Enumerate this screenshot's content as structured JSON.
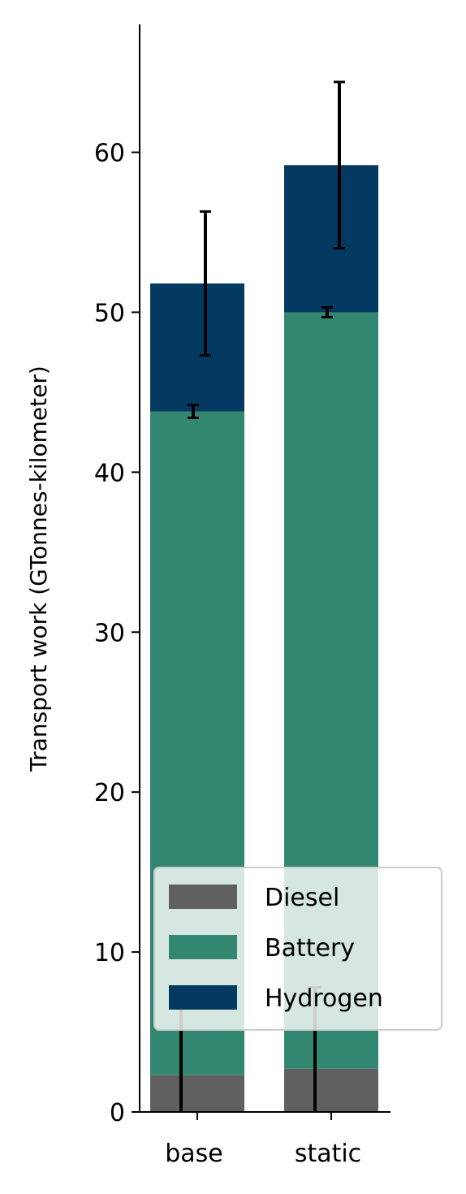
{
  "chart_data": {
    "type": "bar",
    "stacked": true,
    "categories": [
      "base",
      "static"
    ],
    "series": [
      {
        "name": "Diesel",
        "color": "#606060",
        "values": [
          2.3,
          2.7
        ]
      },
      {
        "name": "Battery",
        "color": "#33866f",
        "values": [
          41.5,
          47.3
        ]
      },
      {
        "name": "Hydrogen",
        "color": "#043a61",
        "values": [
          8.0,
          9.2
        ]
      }
    ],
    "error_bars": [
      {
        "category": "base",
        "series": "Diesel",
        "center": 2.3,
        "low": 0.0,
        "high": 6.8
      },
      {
        "category": "base",
        "series": "Battery",
        "center": 43.8,
        "low": 43.4,
        "high": 44.2
      },
      {
        "category": "base",
        "series": "Hydrogen",
        "center": 51.8,
        "low": 47.3,
        "high": 56.3
      },
      {
        "category": "static",
        "series": "Diesel",
        "center": 2.7,
        "low": 0.0,
        "high": 7.8
      },
      {
        "category": "static",
        "series": "Battery",
        "center": 50.0,
        "low": 49.7,
        "high": 50.3
      },
      {
        "category": "static",
        "series": "Hydrogen",
        "center": 59.2,
        "low": 54.0,
        "high": 64.4
      }
    ],
    "xlabel": "",
    "ylabel": "Transport work (GTonnes-kilometer)",
    "ylim": [
      0,
      68
    ],
    "yticks": [
      "0",
      "10",
      "20",
      "30",
      "40",
      "50",
      "60"
    ],
    "grid": false,
    "legend_position": "lower-right"
  }
}
